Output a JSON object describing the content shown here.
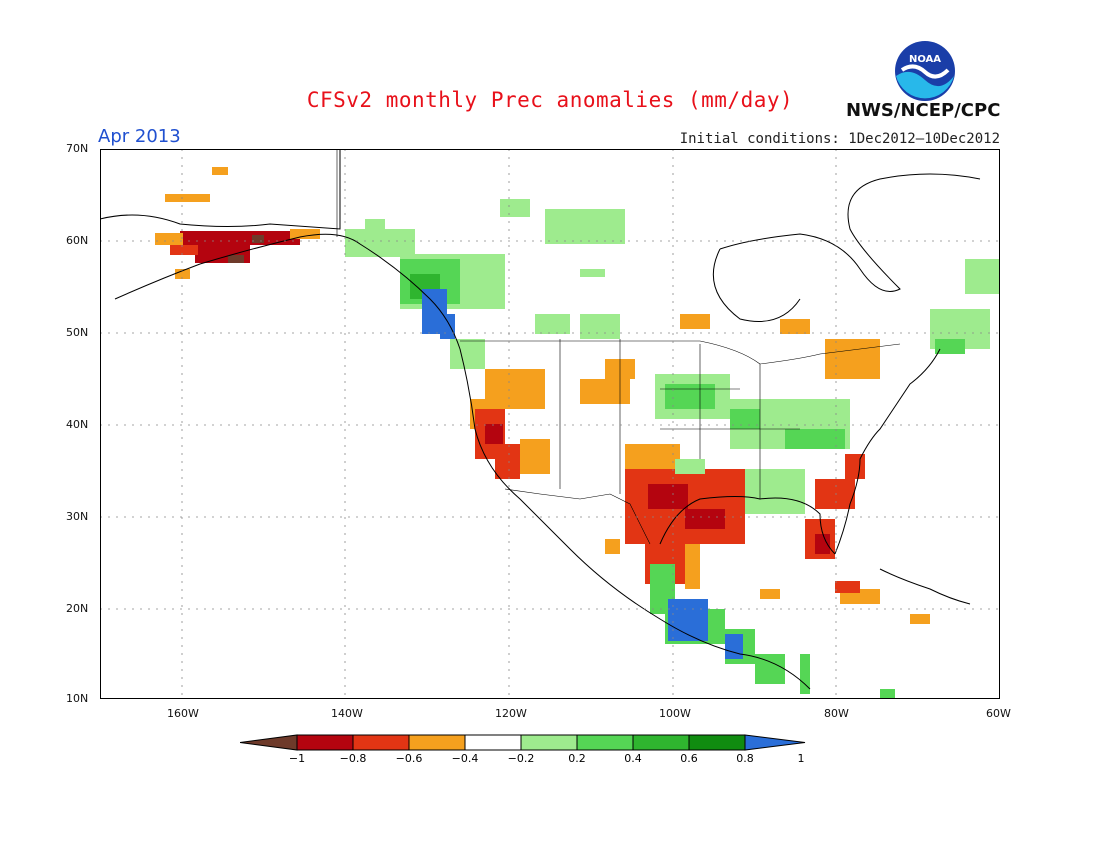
{
  "title": "CFSv2 monthly Prec anomalies (mm/day)",
  "valid_month": "Apr 2013",
  "initial_conditions": "Initial conditions: 1Dec2012–10Dec2012",
  "agency": "NWS/NCEP/CPC",
  "logo_text": "NOAA",
  "map": {
    "lat_labels": [
      "70N",
      "60N",
      "50N",
      "40N",
      "30N",
      "20N",
      "10N"
    ],
    "lon_labels": [
      "160W",
      "140W",
      "120W",
      "100W",
      "80W",
      "60W"
    ],
    "lon_range": [
      -170,
      -60
    ],
    "lat_range": [
      10,
      70
    ]
  },
  "colorbar": {
    "labels": [
      "−1",
      "−0.8",
      "−0.6",
      "−0.4",
      "−0.2",
      "0.2",
      "0.4",
      "0.6",
      "0.8",
      "1"
    ],
    "colors": [
      "#6e3a2a",
      "#b4040f",
      "#e23514",
      "#f5a01e",
      "#ffffff",
      "#9eeb8e",
      "#55d655",
      "#2fb52f",
      "#108c10",
      "#2a6ed8"
    ]
  },
  "anomaly_regions": [
    {
      "name": "alaska-south",
      "color": "#b4040f"
    },
    {
      "name": "pacific-northwest-coast",
      "color": "#2a6ed8"
    },
    {
      "name": "california",
      "color": "#e23514"
    },
    {
      "name": "texas",
      "color": "#b4040f"
    },
    {
      "name": "florida",
      "color": "#e23514"
    },
    {
      "name": "midwest",
      "color": "#55d655"
    },
    {
      "name": "southern-mexico",
      "color": "#2a6ed8"
    }
  ]
}
